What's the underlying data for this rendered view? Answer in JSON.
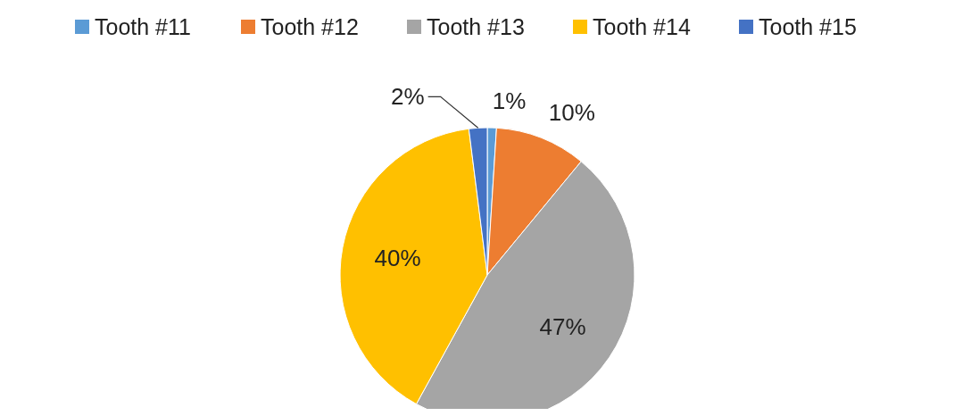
{
  "chart_data": {
    "type": "pie",
    "categories": [
      "Tooth #11",
      "Tooth #12",
      "Tooth #13",
      "Tooth #14",
      "Tooth #15"
    ],
    "values": [
      1,
      10,
      47,
      40,
      2
    ],
    "colors": [
      "#5b9bd5",
      "#ed7d31",
      "#a5a5a5",
      "#ffc000",
      "#4472c4"
    ],
    "value_labels": [
      "1%",
      "10%",
      "47%",
      "40%",
      "2%"
    ],
    "legend": "top"
  }
}
